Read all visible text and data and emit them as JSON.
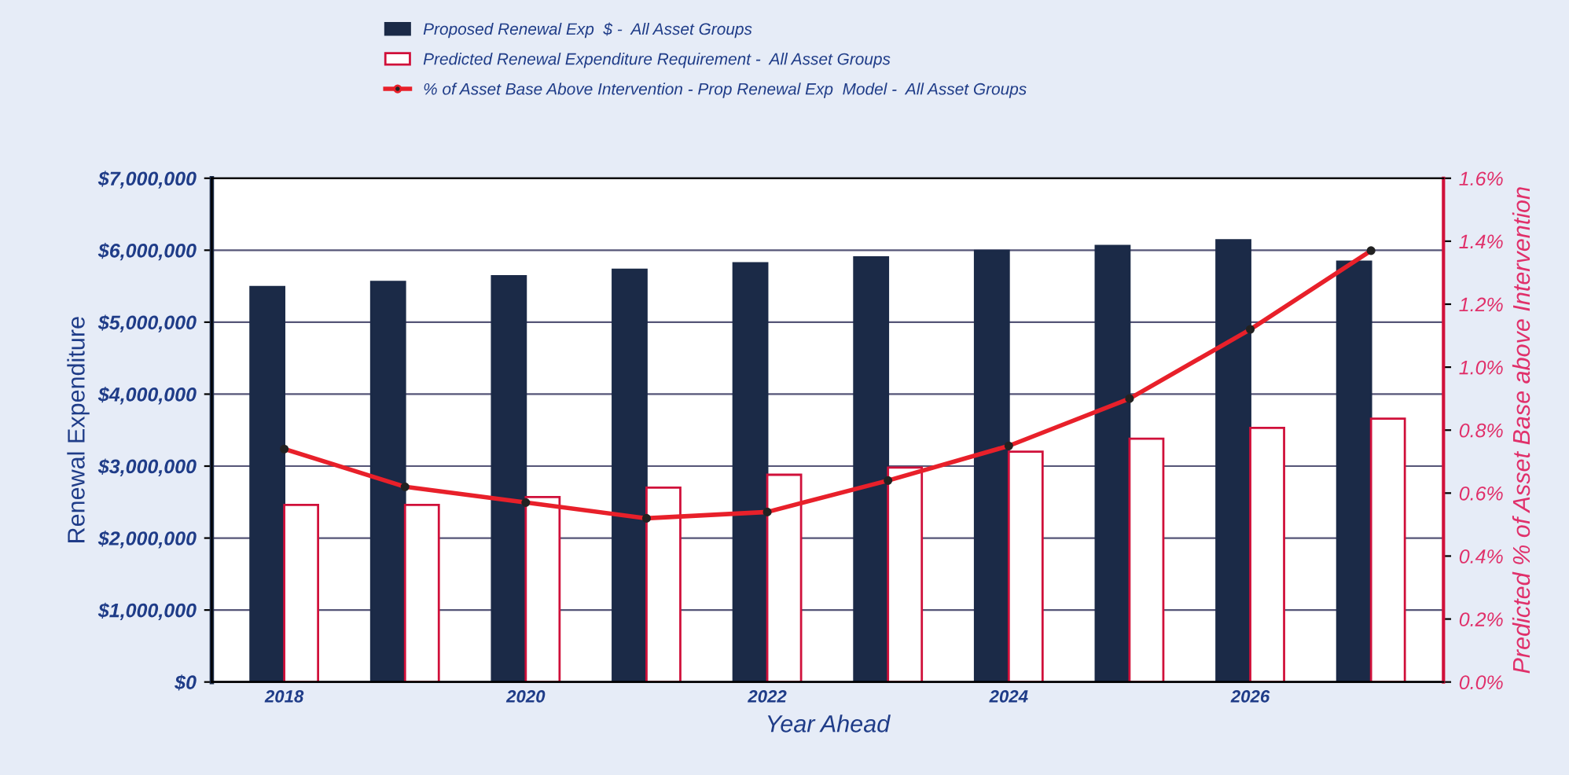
{
  "chart_data": {
    "type": "bar",
    "categories": [
      "2018",
      null,
      "2020",
      null,
      "2022",
      null,
      "2024",
      null,
      "2026",
      null
    ],
    "series": [
      {
        "name": "Proposed Renewal Exp  $ -  All Asset Groups",
        "color": "#1b2a47",
        "values": [
          5490000,
          5560000,
          5640000,
          5730000,
          5820000,
          5900000,
          5990000,
          6060000,
          6140000,
          5840000
        ]
      },
      {
        "name": "Predicted Renewal Expenditure Requirement -  All Asset Groups",
        "color": "#d0103a",
        "values": [
          2460000,
          2460000,
          2570000,
          2700000,
          2880000,
          2980000,
          3200000,
          3380000,
          3530000,
          3660000
        ]
      },
      {
        "name": "% of Asset Base Above Intervention - Prop Renewal Exp  Model -  All Asset Groups",
        "type": "line",
        "axis": "y2",
        "color": "#e8202a",
        "values": [
          0.74,
          0.62,
          0.57,
          0.52,
          0.54,
          0.64,
          0.75,
          0.9,
          1.12,
          1.37
        ]
      }
    ],
    "xlabel": "Year Ahead",
    "ylabel": "Renewal Expenditure",
    "y2label": "Predicted % of Asset Base above Intervention",
    "ylim": [
      0,
      7000000
    ],
    "yticks": [
      {
        "value": 0,
        "label": "$0"
      },
      {
        "value": 1000000,
        "label": "$1,000,000"
      },
      {
        "value": 2000000,
        "label": "$2,000,000"
      },
      {
        "value": 3000000,
        "label": "$3,000,000"
      },
      {
        "value": 4000000,
        "label": "$4,000,000"
      },
      {
        "value": 5000000,
        "label": "$5,000,000"
      },
      {
        "value": 6000000,
        "label": "$6,000,000"
      },
      {
        "value": 7000000,
        "label": "$7,000,000"
      }
    ],
    "y2lim": [
      0,
      1.6
    ],
    "y2ticks": [
      {
        "value": 0,
        "label": "0.0%"
      },
      {
        "value": 0.2,
        "label": "0.2%"
      },
      {
        "value": 0.4,
        "label": "0.4%"
      },
      {
        "value": 0.6,
        "label": "0.6%"
      },
      {
        "value": 0.8,
        "label": "0.8%"
      },
      {
        "value": 1.0,
        "label": "1.0%"
      },
      {
        "value": 1.2,
        "label": "1.2%"
      },
      {
        "value": 1.4,
        "label": "1.4%"
      },
      {
        "value": 1.6,
        "label": "1.6%"
      }
    ],
    "grid": "y",
    "legend": "top",
    "marker": "circle",
    "line_style": "solid"
  }
}
